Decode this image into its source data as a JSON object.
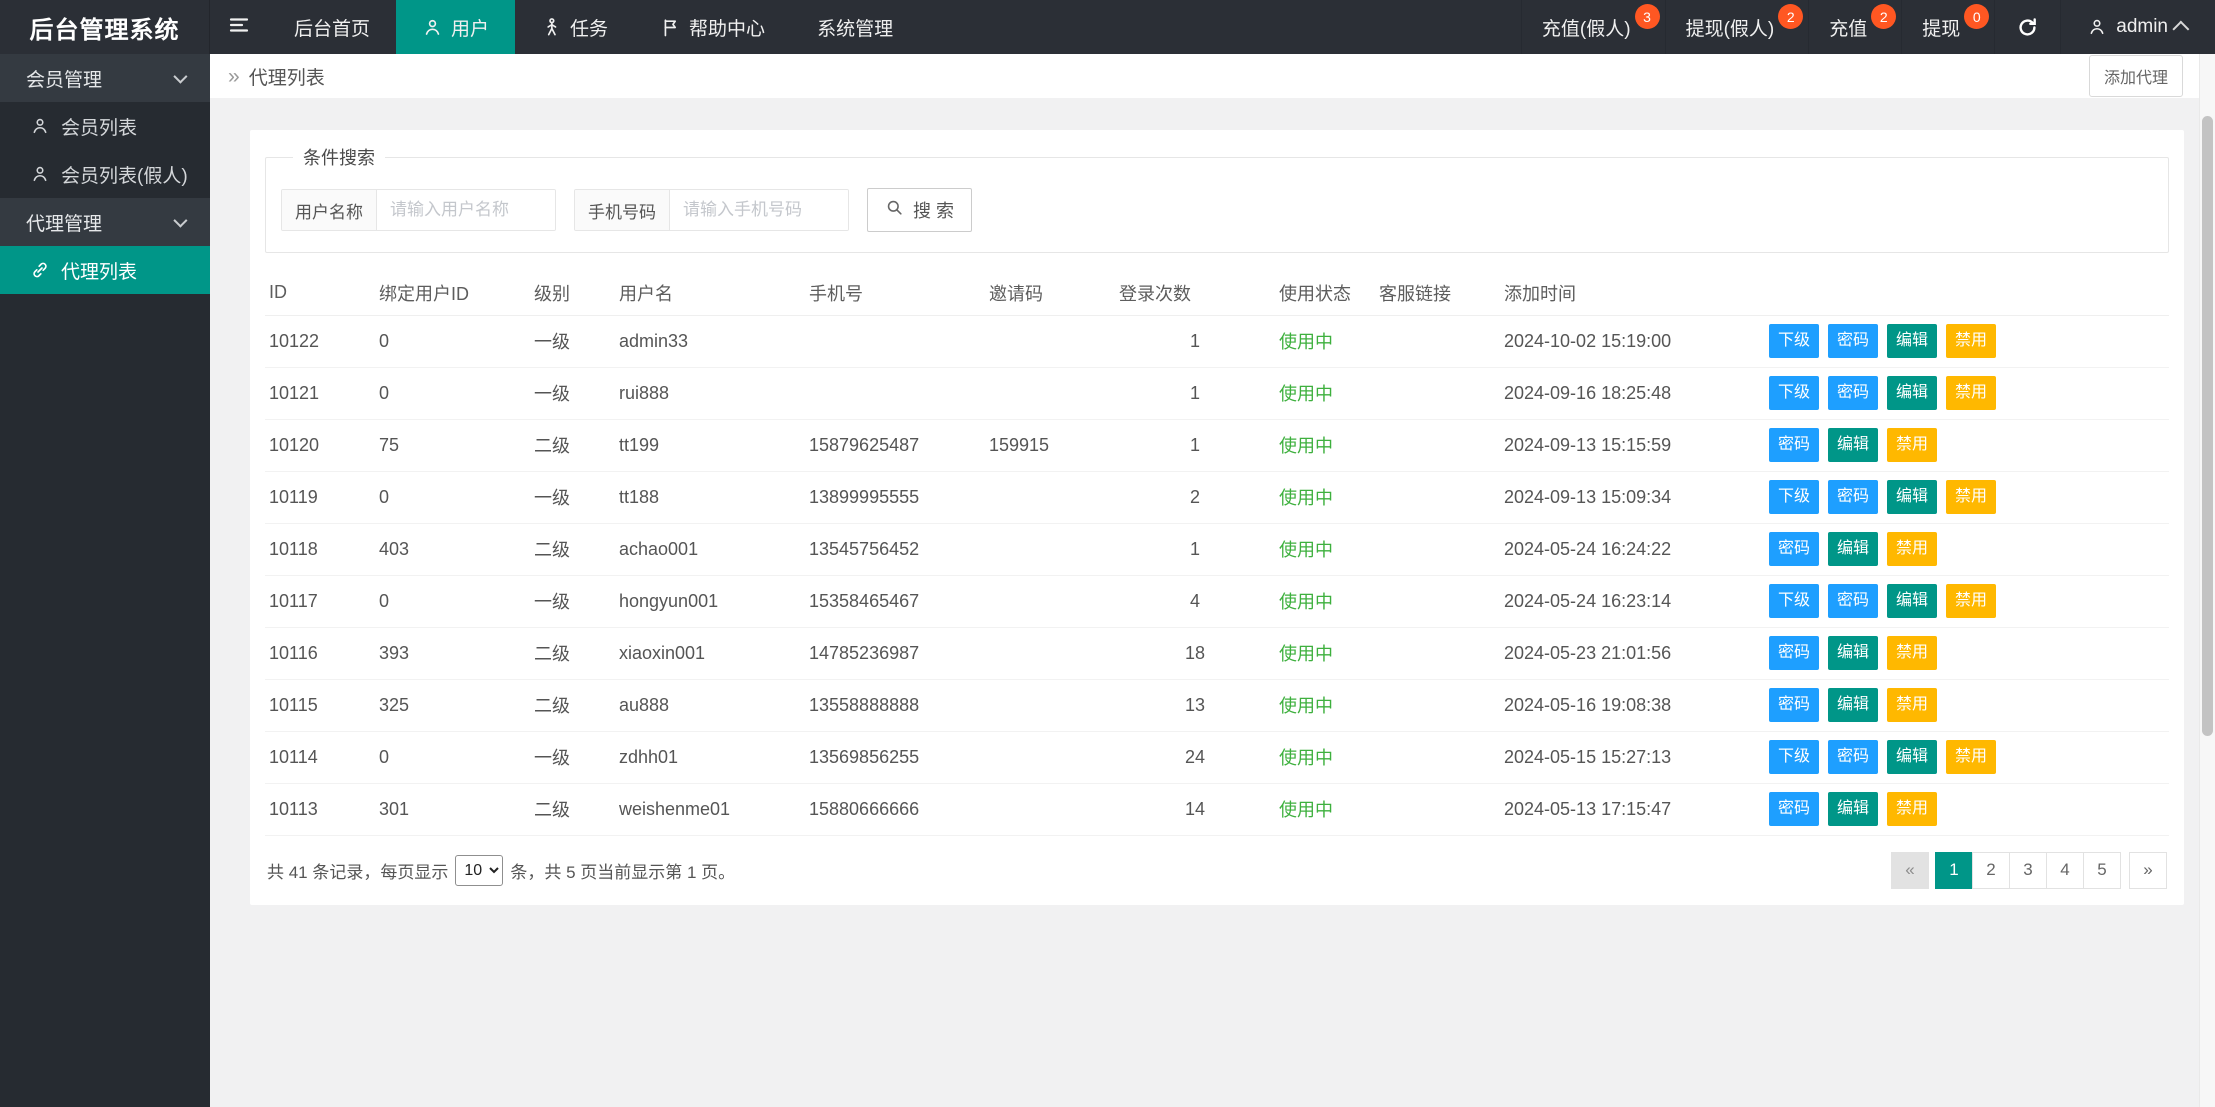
{
  "navbar": {
    "logo": "后台管理系统",
    "menu": [
      {
        "name": "home",
        "label": "后台首页",
        "icon": null,
        "active": false
      },
      {
        "name": "users",
        "label": "用户",
        "icon": "user-icon",
        "active": true
      },
      {
        "name": "tasks",
        "label": "任务",
        "icon": "walking-user-icon",
        "active": false
      },
      {
        "name": "help-center",
        "label": "帮助中心",
        "icon": "flag-icon",
        "active": false
      },
      {
        "name": "system",
        "label": "系统管理",
        "icon": null,
        "active": false
      }
    ],
    "right_items": [
      {
        "name": "recharge-fake",
        "label": "充值(假人)",
        "badge": "3"
      },
      {
        "name": "withdraw-fake",
        "label": "提现(假人)",
        "badge": "2"
      },
      {
        "name": "recharge",
        "label": "充值",
        "badge": "2"
      },
      {
        "name": "withdraw",
        "label": "提现",
        "badge": "0"
      }
    ],
    "user": "admin"
  },
  "sidebar": {
    "groups": [
      {
        "name": "member-management",
        "label": "会员管理",
        "items": [
          {
            "name": "member-list",
            "label": "会员列表",
            "icon": "user-icon",
            "active": false
          },
          {
            "name": "member-list-fake",
            "label": "会员列表(假人)",
            "icon": "user-icon",
            "active": false
          }
        ]
      },
      {
        "name": "agent-management",
        "label": "代理管理",
        "items": [
          {
            "name": "agent-list",
            "label": "代理列表",
            "icon": "link-icon",
            "active": true
          }
        ]
      }
    ]
  },
  "breadcrumb": {
    "icon": "»",
    "label": "代理列表",
    "add_button": "添加代理"
  },
  "search": {
    "legend": "条件搜索",
    "fields": [
      {
        "label": "用户名称",
        "placeholder": "请输入用户名称"
      },
      {
        "label": "手机号码",
        "placeholder": "请输入手机号码"
      }
    ],
    "button_label": "搜 索"
  },
  "table": {
    "columns": [
      "ID",
      "绑定用户ID",
      "级别",
      "用户名",
      "手机号",
      "邀请码",
      "登录次数",
      "使用状态",
      "客服链接",
      "添加时间",
      ""
    ],
    "col_keys": [
      "id",
      "bind_user_id",
      "level",
      "username",
      "phone",
      "invite_code",
      "login_count",
      "status",
      "service_link",
      "created_at"
    ],
    "status_color": "#3eb03e",
    "action_types": {
      "下级": {
        "name": "subordinate-button",
        "color": "#1E9FFF"
      },
      "密码": {
        "name": "password-button",
        "color": "#1E9FFF"
      },
      "编辑": {
        "name": "edit-button",
        "color": "#009688"
      },
      "禁用": {
        "name": "disable-button",
        "color": "#FFB800"
      }
    },
    "rows": [
      {
        "id": "10122",
        "bind_user_id": "0",
        "level": "一级",
        "username": "admin33",
        "phone": "",
        "invite_code": "",
        "login_count": "1",
        "status": "使用中",
        "service_link": "",
        "created_at": "2024-10-02 15:19:00",
        "actions": [
          "下级",
          "密码",
          "编辑",
          "禁用"
        ]
      },
      {
        "id": "10121",
        "bind_user_id": "0",
        "level": "一级",
        "username": "rui888",
        "phone": "",
        "invite_code": "",
        "login_count": "1",
        "status": "使用中",
        "service_link": "",
        "created_at": "2024-09-16 18:25:48",
        "actions": [
          "下级",
          "密码",
          "编辑",
          "禁用"
        ]
      },
      {
        "id": "10120",
        "bind_user_id": "75",
        "level": "二级",
        "username": "tt199",
        "phone": "15879625487",
        "invite_code": "159915",
        "login_count": "1",
        "status": "使用中",
        "service_link": "",
        "created_at": "2024-09-13 15:15:59",
        "actions": [
          "密码",
          "编辑",
          "禁用"
        ]
      },
      {
        "id": "10119",
        "bind_user_id": "0",
        "level": "一级",
        "username": "tt188",
        "phone": "13899995555",
        "invite_code": "",
        "login_count": "2",
        "status": "使用中",
        "service_link": "",
        "created_at": "2024-09-13 15:09:34",
        "actions": [
          "下级",
          "密码",
          "编辑",
          "禁用"
        ]
      },
      {
        "id": "10118",
        "bind_user_id": "403",
        "level": "二级",
        "username": "achao001",
        "phone": "13545756452",
        "invite_code": "",
        "login_count": "1",
        "status": "使用中",
        "service_link": "",
        "created_at": "2024-05-24 16:24:22",
        "actions": [
          "密码",
          "编辑",
          "禁用"
        ]
      },
      {
        "id": "10117",
        "bind_user_id": "0",
        "level": "一级",
        "username": "hongyun001",
        "phone": "15358465467",
        "invite_code": "",
        "login_count": "4",
        "status": "使用中",
        "service_link": "",
        "created_at": "2024-05-24 16:23:14",
        "actions": [
          "下级",
          "密码",
          "编辑",
          "禁用"
        ]
      },
      {
        "id": "10116",
        "bind_user_id": "393",
        "level": "二级",
        "username": "xiaoxin001",
        "phone": "14785236987",
        "invite_code": "",
        "login_count": "18",
        "status": "使用中",
        "service_link": "",
        "created_at": "2024-05-23 21:01:56",
        "actions": [
          "密码",
          "编辑",
          "禁用"
        ]
      },
      {
        "id": "10115",
        "bind_user_id": "325",
        "level": "二级",
        "username": "au888",
        "phone": "13558888888",
        "invite_code": "",
        "login_count": "13",
        "status": "使用中",
        "service_link": "",
        "created_at": "2024-05-16 19:08:38",
        "actions": [
          "密码",
          "编辑",
          "禁用"
        ]
      },
      {
        "id": "10114",
        "bind_user_id": "0",
        "level": "一级",
        "username": "zdhh01",
        "phone": "13569856255",
        "invite_code": "",
        "login_count": "24",
        "status": "使用中",
        "service_link": "",
        "created_at": "2024-05-15 15:27:13",
        "actions": [
          "下级",
          "密码",
          "编辑",
          "禁用"
        ]
      },
      {
        "id": "10113",
        "bind_user_id": "301",
        "level": "二级",
        "username": "weishenme01",
        "phone": "15880666666",
        "invite_code": "",
        "login_count": "14",
        "status": "使用中",
        "service_link": "",
        "created_at": "2024-05-13 17:15:47",
        "actions": [
          "密码",
          "编辑",
          "禁用"
        ]
      }
    ]
  },
  "pagination": {
    "summary_prefix": "共 41 条记录，每页显示",
    "page_size": "10",
    "summary_suffix": "条，共 5 页当前显示第 1 页。",
    "pages": [
      {
        "name": "prev",
        "label": "«",
        "state": "disabled"
      },
      {
        "name": "page-1",
        "label": "1",
        "state": "active"
      },
      {
        "name": "page-2",
        "label": "2",
        "state": "normal"
      },
      {
        "name": "page-3",
        "label": "3",
        "state": "normal"
      },
      {
        "name": "page-4",
        "label": "4",
        "state": "normal"
      },
      {
        "name": "page-5",
        "label": "5",
        "state": "normal"
      },
      {
        "name": "next",
        "label": "»",
        "state": "normal"
      }
    ]
  },
  "colors": {
    "accent_teal": "#009688",
    "button_blue": "#1E9FFF",
    "button_orange": "#FFB800",
    "badge_red": "#ff5722",
    "status_green": "#3eb03e",
    "navbar_dark": "#2b2f36"
  }
}
